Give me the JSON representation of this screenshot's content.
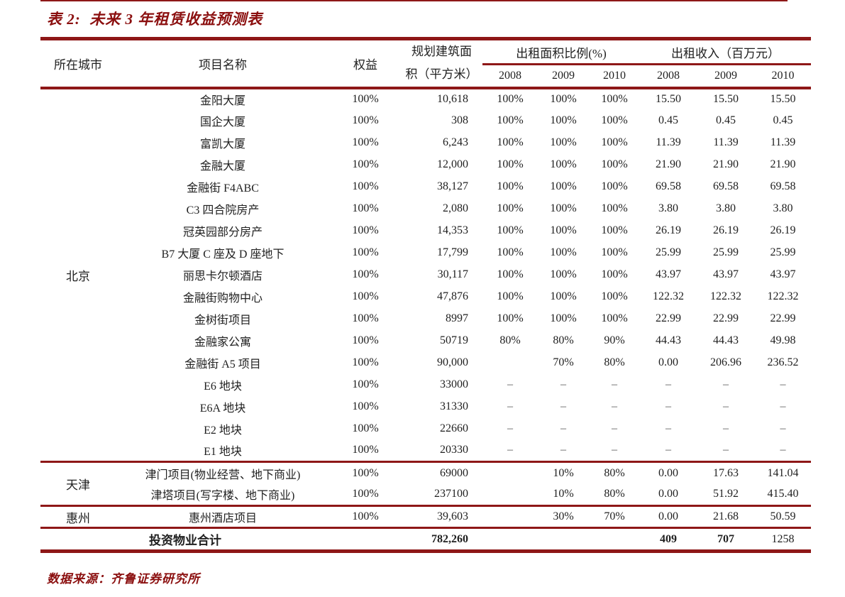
{
  "title": "表 2:  未来 3 年租赁收益预测表",
  "source_note": "数据来源：齐鲁证券研究所",
  "colors": {
    "accent": "#8e1717",
    "title_text": "#8b0f0f",
    "body_text": "#1f1f1f"
  },
  "table": {
    "headers": {
      "city": "所在城市",
      "project": "项目名称",
      "equity": "权益",
      "area_line1": "规划建筑面",
      "area_line2": "积（平方米）",
      "ratio_group": "出租面积比例(%)",
      "income_group": "出租收入（百万元）",
      "years": [
        "2008",
        "2009",
        "2010"
      ]
    },
    "sections": [
      {
        "city": "北京",
        "rows": [
          {
            "project": "金阳大厦",
            "equity": "100%",
            "area": "10,618",
            "ratio": [
              "100%",
              "100%",
              "100%"
            ],
            "income": [
              "15.50",
              "15.50",
              "15.50"
            ]
          },
          {
            "project": "国企大厦",
            "equity": "100%",
            "area": "308",
            "ratio": [
              "100%",
              "100%",
              "100%"
            ],
            "income": [
              "0.45",
              "0.45",
              "0.45"
            ]
          },
          {
            "project": "富凯大厦",
            "equity": "100%",
            "area": "6,243",
            "ratio": [
              "100%",
              "100%",
              "100%"
            ],
            "income": [
              "11.39",
              "11.39",
              "11.39"
            ]
          },
          {
            "project": "金融大厦",
            "equity": "100%",
            "area": "12,000",
            "ratio": [
              "100%",
              "100%",
              "100%"
            ],
            "income": [
              "21.90",
              "21.90",
              "21.90"
            ]
          },
          {
            "project": "金融街 F4ABC",
            "equity": "100%",
            "area": "38,127",
            "ratio": [
              "100%",
              "100%",
              "100%"
            ],
            "income": [
              "69.58",
              "69.58",
              "69.58"
            ]
          },
          {
            "project": "C3 四合院房产",
            "equity": "100%",
            "area": "2,080",
            "ratio": [
              "100%",
              "100%",
              "100%"
            ],
            "income": [
              "3.80",
              "3.80",
              "3.80"
            ]
          },
          {
            "project": "冠英园部分房产",
            "equity": "100%",
            "area": "14,353",
            "ratio": [
              "100%",
              "100%",
              "100%"
            ],
            "income": [
              "26.19",
              "26.19",
              "26.19"
            ]
          },
          {
            "project": "B7 大厦 C 座及 D 座地下",
            "equity": "100%",
            "area": "17,799",
            "ratio": [
              "100%",
              "100%",
              "100%"
            ],
            "income": [
              "25.99",
              "25.99",
              "25.99"
            ]
          },
          {
            "project": "丽思卡尔顿酒店",
            "equity": "100%",
            "area": "30,117",
            "ratio": [
              "100%",
              "100%",
              "100%"
            ],
            "income": [
              "43.97",
              "43.97",
              "43.97"
            ]
          },
          {
            "project": "金融街购物中心",
            "equity": "100%",
            "area": "47,876",
            "ratio": [
              "100%",
              "100%",
              "100%"
            ],
            "income": [
              "122.32",
              "122.32",
              "122.32"
            ]
          },
          {
            "project": "金树街项目",
            "equity": "100%",
            "area": "8997",
            "ratio": [
              "100%",
              "100%",
              "100%"
            ],
            "income": [
              "22.99",
              "22.99",
              "22.99"
            ]
          },
          {
            "project": "金融家公寓",
            "equity": "100%",
            "area": "50719",
            "ratio": [
              "80%",
              "80%",
              "90%"
            ],
            "income": [
              "44.43",
              "44.43",
              "49.98"
            ]
          },
          {
            "project": "金融街 A5 项目",
            "equity": "100%",
            "area": "90,000",
            "ratio": [
              "",
              "70%",
              "80%"
            ],
            "income": [
              "0.00",
              "206.96",
              "236.52"
            ]
          },
          {
            "project": "E6 地块",
            "equity": "100%",
            "area": "33000",
            "ratio": [
              "–",
              "–",
              "–"
            ],
            "income": [
              "–",
              "–",
              "–"
            ]
          },
          {
            "project": "E6A 地块",
            "equity": "100%",
            "area": "31330",
            "ratio": [
              "–",
              "–",
              "–"
            ],
            "income": [
              "–",
              "–",
              "–"
            ]
          },
          {
            "project": "E2 地块",
            "equity": "100%",
            "area": "22660",
            "ratio": [
              "–",
              "–",
              "–"
            ],
            "income": [
              "–",
              "–",
              "–"
            ]
          },
          {
            "project": "E1 地块",
            "equity": "100%",
            "area": "20330",
            "ratio": [
              "–",
              "–",
              "–"
            ],
            "income": [
              "–",
              "–",
              "–"
            ]
          }
        ]
      },
      {
        "city": "天津",
        "rows": [
          {
            "project": "津门项目(物业经营、地下商业)",
            "equity": "100%",
            "area": "69000",
            "ratio": [
              "",
              "10%",
              "80%"
            ],
            "income": [
              "0.00",
              "17.63",
              "141.04"
            ]
          },
          {
            "project": "津塔项目(写字楼、地下商业)",
            "equity": "100%",
            "area": "237100",
            "ratio": [
              "",
              "10%",
              "80%"
            ],
            "income": [
              "0.00",
              "51.92",
              "415.40"
            ]
          }
        ]
      },
      {
        "city": "惠州",
        "rows": [
          {
            "project": "惠州酒店项目",
            "equity": "100%",
            "area": "39,603",
            "ratio": [
              "",
              "30%",
              "70%"
            ],
            "income": [
              "0.00",
              "21.68",
              "50.59"
            ]
          }
        ]
      }
    ],
    "total_row": {
      "label": "投资物业合计",
      "equity": "",
      "area": "782,260",
      "ratio": [
        "",
        "",
        ""
      ],
      "income": [
        "409",
        "707",
        "1258"
      ],
      "income_bold": [
        true,
        true,
        false
      ],
      "area_bold": true
    }
  }
}
